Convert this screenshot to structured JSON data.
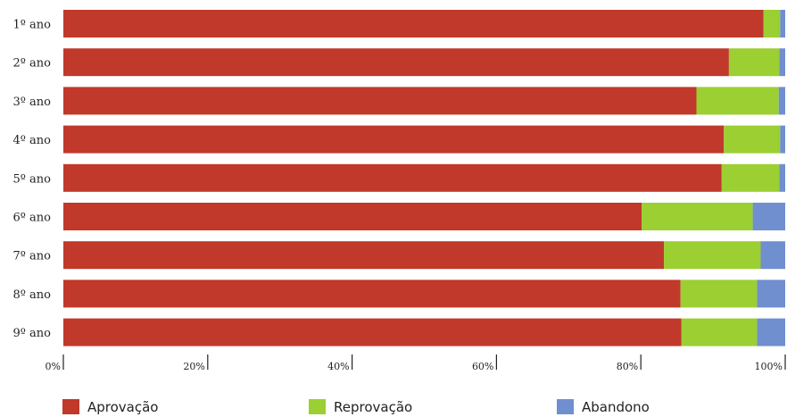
{
  "chart_data": {
    "type": "bar",
    "orientation": "horizontal",
    "stacked": true,
    "categories": [
      "1º ano",
      "2º ano",
      "3º ano",
      "4º ano",
      "5º ano",
      "6º ano",
      "7º ano",
      "8º ano",
      "9º ano"
    ],
    "series": [
      {
        "name": "Aprovação",
        "color": "#c0392b",
        "values": [
          97.0,
          92.2,
          87.7,
          91.5,
          91.2,
          80.1,
          83.2,
          85.5,
          85.6
        ]
      },
      {
        "name": "Reprovação",
        "color": "#9bcf32",
        "values": [
          2.3,
          7.0,
          11.4,
          7.8,
          8.0,
          15.4,
          13.4,
          10.6,
          10.5
        ]
      },
      {
        "name": "Abandono",
        "color": "#6f8fcf",
        "values": [
          0.7,
          0.8,
          0.9,
          0.7,
          0.8,
          4.5,
          3.4,
          3.9,
          3.9
        ]
      }
    ],
    "xlim": [
      0,
      100
    ],
    "xticks": [
      "0%",
      "20%",
      "40%",
      "60%",
      "80%",
      "100%"
    ],
    "xtick_values": [
      0,
      20,
      40,
      60,
      80,
      100
    ],
    "legend_position": "bottom",
    "grid": false
  }
}
